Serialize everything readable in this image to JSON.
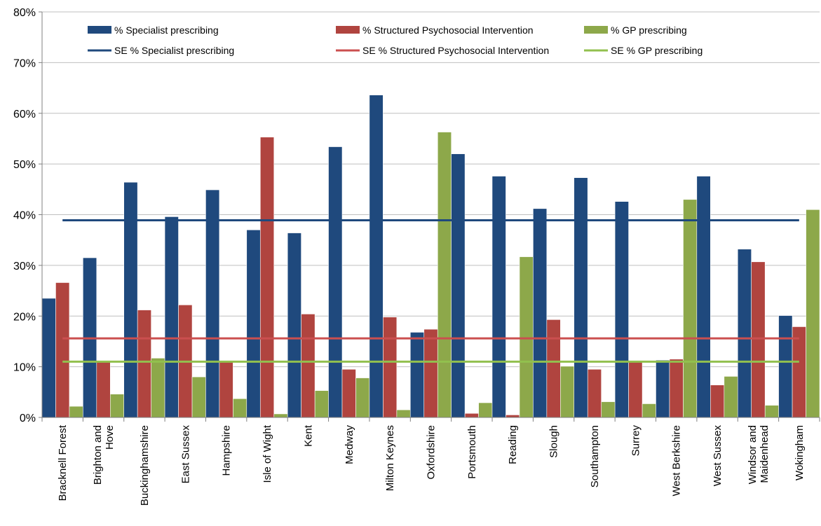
{
  "chart_data": {
    "type": "bar",
    "title": "",
    "xlabel": "",
    "ylabel": "",
    "ylim": [
      0,
      80
    ],
    "yticks": [
      "0%",
      "10%",
      "20%",
      "30%",
      "40%",
      "50%",
      "60%",
      "70%",
      "80%"
    ],
    "grid": true,
    "legend_position": "top",
    "categories": [
      "Bracknell Forest",
      "Brighton and Hove",
      "Buckinghamshire",
      "East Sussex",
      "Hampshire",
      "Isle of Wight",
      "Kent",
      "Medway",
      "Milton Keynes",
      "Oxfordshire",
      "Portsmouth",
      "Reading",
      "Slough",
      "Southampton",
      "Surrey",
      "West Berkshire",
      "West Sussex",
      "Windsor and Maidenhead",
      "Wokingham"
    ],
    "category_label_lines": [
      [
        "Bracknell Forest"
      ],
      [
        "Brighton and",
        "Hove"
      ],
      [
        "Buckinghamshire"
      ],
      [
        "East Sussex"
      ],
      [
        "Hampshire"
      ],
      [
        "Isle of Wight"
      ],
      [
        "Kent"
      ],
      [
        "Medway"
      ],
      [
        "Milton Keynes"
      ],
      [
        "Oxfordshire"
      ],
      [
        "Portsmouth"
      ],
      [
        "Reading"
      ],
      [
        "Slough"
      ],
      [
        "Southampton"
      ],
      [
        "Surrey"
      ],
      [
        "West Berkshire"
      ],
      [
        "West Sussex"
      ],
      [
        "Windsor and",
        "Maidenhead"
      ],
      [
        "Wokingham"
      ]
    ],
    "series": [
      {
        "name": "% Specialist prescribing",
        "color": "#1F497D",
        "values": [
          23.5,
          31.5,
          46.4,
          39.6,
          44.9,
          37.0,
          36.4,
          53.4,
          63.6,
          16.8,
          52.0,
          47.6,
          41.2,
          47.3,
          42.6,
          11.3,
          47.6,
          33.2,
          20.1
        ]
      },
      {
        "name": "% Structured Psychosocial Intervention",
        "color": "#B0443F",
        "values": [
          26.6,
          11.0,
          21.2,
          22.2,
          11.0,
          55.3,
          20.4,
          9.5,
          19.8,
          17.4,
          0.8,
          0.5,
          19.3,
          9.5,
          11.0,
          11.5,
          6.4,
          30.7,
          17.9
        ]
      },
      {
        "name": "% GP prescribing",
        "color": "#8DA84A",
        "values": [
          2.2,
          4.6,
          11.7,
          8.0,
          3.7,
          0.7,
          5.3,
          7.8,
          1.5,
          56.3,
          2.9,
          31.7,
          10.1,
          3.1,
          2.7,
          43.0,
          8.1,
          2.4,
          41.0
        ]
      }
    ],
    "reference_lines": [
      {
        "name": "SE % Specialist prescribing",
        "color": "#1F497D",
        "value": 38.9
      },
      {
        "name": "SE % Structured Psychosocial Intervention",
        "color": "#CB4F4F",
        "value": 15.6
      },
      {
        "name": "SE % GP prescribing",
        "color": "#92C04E",
        "value": 11.0
      }
    ]
  }
}
